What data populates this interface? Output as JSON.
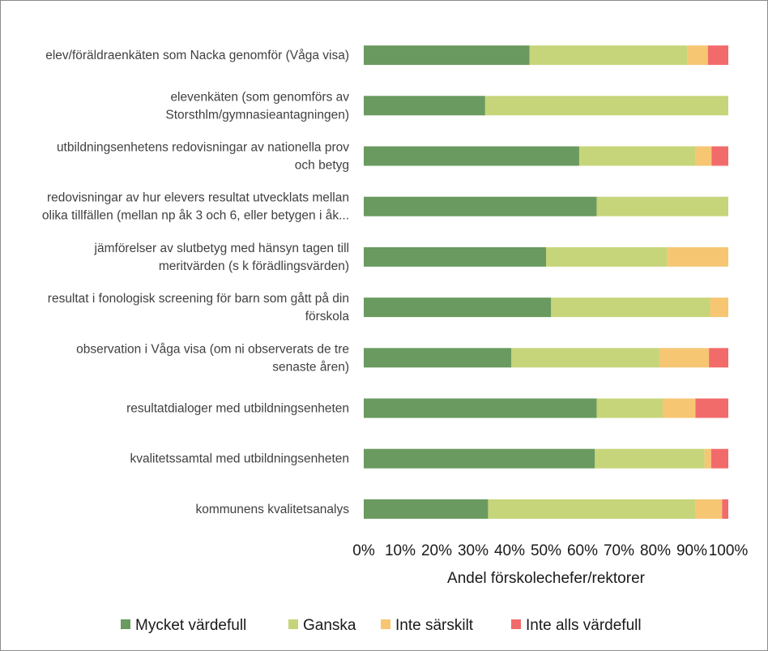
{
  "chart_data": {
    "type": "bar",
    "orientation": "horizontal",
    "stacked": "percent",
    "title": "",
    "xlabel": "Andel förskolechefer/rektorer",
    "ylabel": "",
    "xlim": [
      0,
      100
    ],
    "x_ticks": [
      "0%",
      "10%",
      "20%",
      "30%",
      "40%",
      "50%",
      "60%",
      "70%",
      "80%",
      "90%",
      "100%"
    ],
    "grid": false,
    "legend_position": "bottom",
    "categories": [
      [
        "elev/föräldraenkäten som Nacka genomför (Våga visa)"
      ],
      [
        "elevenkäten (som genomförs av",
        "Storsthlm/gymnasieantagningen)"
      ],
      [
        "utbildningsenhetens redovisningar av nationella prov",
        "och betyg"
      ],
      [
        "redovisningar av hur elevers resultat utvecklats mellan",
        "olika tillfällen (mellan np åk 3 och 6, eller betygen i åk..."
      ],
      [
        "jämförelser av slutbetyg med hänsyn tagen till",
        "meritvärden (s k förädlingsvärden)"
      ],
      [
        "resultat i fonologisk screening för barn som gått på din",
        "förskola"
      ],
      [
        "observation i Våga visa (om ni observerats de tre",
        "senaste åren)"
      ],
      [
        "resultatdialoger med utbildningsenheten"
      ],
      [
        "kvalitetssamtal med utbildningsenheten"
      ],
      [
        "kommunens kvalitetsanalys"
      ]
    ],
    "series": [
      {
        "name": "Mycket värdefull",
        "color": "#6a9a5f",
        "values": [
          45.5,
          33.3,
          59.1,
          63.9,
          50.0,
          51.4,
          40.5,
          63.9,
          63.4,
          34.1
        ]
      },
      {
        "name": "Ganska",
        "color": "#c6d57a",
        "values": [
          43.2,
          66.7,
          31.8,
          36.1,
          33.3,
          43.6,
          40.6,
          18.1,
          30.1,
          56.8
        ]
      },
      {
        "name": "Inte särskilt",
        "color": "#f6c673",
        "values": [
          5.7,
          0,
          4.5,
          0,
          16.7,
          5.0,
          13.6,
          9.0,
          1.8,
          7.4
        ]
      },
      {
        "name": "Inte alls värdefull",
        "color": "#f26b6b",
        "values": [
          5.6,
          0,
          4.6,
          0,
          0,
          0,
          5.3,
          9.0,
          4.7,
          1.7
        ]
      }
    ]
  }
}
